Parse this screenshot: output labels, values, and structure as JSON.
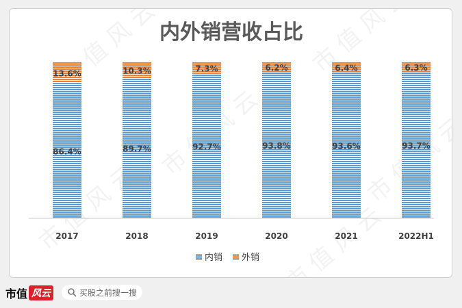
{
  "chart_data": {
    "type": "bar",
    "stacked": true,
    "title": "内外销营收占比",
    "categories": [
      "2017",
      "2018",
      "2019",
      "2020",
      "2021",
      "2022H1"
    ],
    "series": [
      {
        "name": "内销",
        "values": [
          86.4,
          89.7,
          92.7,
          93.8,
          93.6,
          93.7
        ],
        "labels": [
          "86.4%",
          "89.7%",
          "92.7%",
          "93.8%",
          "93.6%",
          "93.7%"
        ],
        "color": "#5b9bd5"
      },
      {
        "name": "外销",
        "values": [
          13.6,
          10.3,
          7.3,
          6.2,
          6.4,
          6.3
        ],
        "labels": [
          "13.6%",
          "10.3%",
          "7.3%",
          "6.2%",
          "6.4%",
          "6.3%"
        ],
        "color": "#ed7d31"
      }
    ],
    "ylim": [
      0,
      100
    ],
    "grid": false,
    "legend": "bottom"
  },
  "brand": {
    "name": "市值",
    "mark": "风云"
  },
  "search": {
    "placeholder": "买股之前搜一搜"
  },
  "watermark": "市 值 风 云"
}
